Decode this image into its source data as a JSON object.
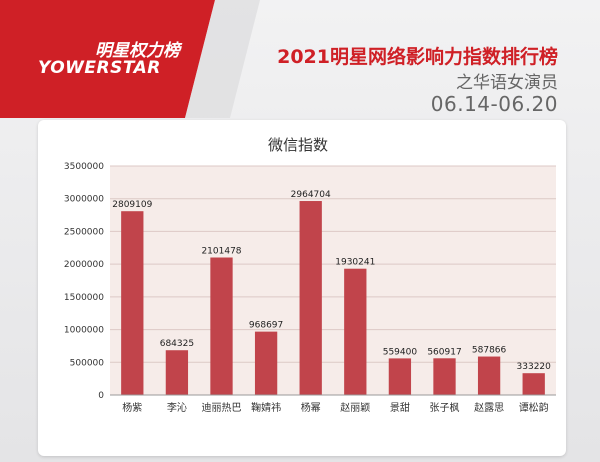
{
  "brand": {
    "logo_cn": "明星权力榜",
    "logo_en": "YOWERSTAR"
  },
  "header": {
    "title": "2021明星网络影响力指数排行榜",
    "subtitle": "之华语女演员",
    "date_range": "06.14-06.20"
  },
  "colors": {
    "accent": "#cf2026",
    "bar": "#c1444b",
    "plot_bg": "#f6ece9"
  },
  "chart_data": {
    "type": "bar",
    "title": "微信指数",
    "categories": [
      "杨紫",
      "李沁",
      "迪丽热巴",
      "鞠婧祎",
      "杨幂",
      "赵丽颖",
      "景甜",
      "张子枫",
      "赵露思",
      "谭松韵"
    ],
    "values": [
      2809109,
      684325,
      2101478,
      968697,
      2964704,
      1930241,
      559400,
      560917,
      587866,
      333220
    ],
    "ylim": [
      0,
      3500000
    ],
    "yticks": [
      0,
      500000,
      1000000,
      1500000,
      2000000,
      2500000,
      3000000,
      3500000
    ],
    "grid": true,
    "legend": false
  }
}
